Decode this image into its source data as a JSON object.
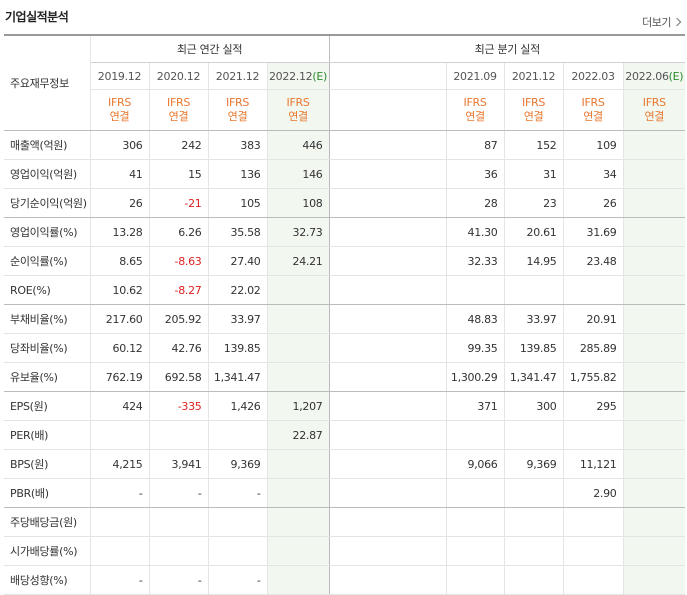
{
  "header": {
    "title": "기업실적분석",
    "more": "더보기"
  },
  "table": {
    "row_header": "주요재무정보",
    "annual_group": "최근 연간 실적",
    "quarter_group": "최근 분기 실적",
    "annual_periods": [
      "2019.12",
      "2020.12",
      "2021.12",
      "2022.12"
    ],
    "annual_est_suffix": "(E)",
    "quarter_periods": [
      "",
      "2021.09",
      "2021.12",
      "2022.03",
      "2022.06"
    ],
    "quarter_est_suffix": "(E)",
    "ifrs_top": "IFRS",
    "ifrs_bottom": "연결",
    "rows": [
      {
        "label": "매출액(억원)",
        "a": [
          "306",
          "242",
          "383",
          "446"
        ],
        "q": [
          "",
          "87",
          "152",
          "109",
          ""
        ]
      },
      {
        "label": "영업이익(억원)",
        "a": [
          "41",
          "15",
          "136",
          "146"
        ],
        "q": [
          "",
          "36",
          "31",
          "34",
          ""
        ]
      },
      {
        "label": "당기순이익(억원)",
        "a": [
          "26",
          "-21",
          "105",
          "108"
        ],
        "q": [
          "",
          "28",
          "23",
          "26",
          ""
        ]
      },
      {
        "label": "영업이익률(%)",
        "a": [
          "13.28",
          "6.26",
          "35.58",
          "32.73"
        ],
        "q": [
          "",
          "41.30",
          "20.61",
          "31.69",
          ""
        ]
      },
      {
        "label": "순이익률(%)",
        "a": [
          "8.65",
          "-8.63",
          "27.40",
          "24.21"
        ],
        "q": [
          "",
          "32.33",
          "14.95",
          "23.48",
          ""
        ]
      },
      {
        "label": "ROE(%)",
        "a": [
          "10.62",
          "-8.27",
          "22.02",
          ""
        ],
        "q": [
          "",
          "",
          "",
          "",
          ""
        ]
      },
      {
        "label": "부채비율(%)",
        "a": [
          "217.60",
          "205.92",
          "33.97",
          ""
        ],
        "q": [
          "",
          "48.83",
          "33.97",
          "20.91",
          ""
        ]
      },
      {
        "label": "당좌비율(%)",
        "a": [
          "60.12",
          "42.76",
          "139.85",
          ""
        ],
        "q": [
          "",
          "99.35",
          "139.85",
          "285.89",
          ""
        ]
      },
      {
        "label": "유보율(%)",
        "a": [
          "762.19",
          "692.58",
          "1,341.47",
          ""
        ],
        "q": [
          "",
          "1,300.29",
          "1,341.47",
          "1,755.82",
          ""
        ]
      },
      {
        "label": "EPS(원)",
        "a": [
          "424",
          "-335",
          "1,426",
          "1,207"
        ],
        "q": [
          "",
          "371",
          "300",
          "295",
          ""
        ]
      },
      {
        "label": "PER(배)",
        "a": [
          "",
          "",
          "",
          "22.87"
        ],
        "q": [
          "",
          "",
          "",
          "",
          ""
        ]
      },
      {
        "label": "BPS(원)",
        "a": [
          "4,215",
          "3,941",
          "9,369",
          ""
        ],
        "q": [
          "",
          "9,066",
          "9,369",
          "11,121",
          ""
        ]
      },
      {
        "label": "PBR(배)",
        "a": [
          "-",
          "-",
          "-",
          ""
        ],
        "q": [
          "",
          "",
          "",
          "2.90",
          ""
        ]
      },
      {
        "label": "주당배당금(원)",
        "a": [
          "",
          "",
          "",
          ""
        ],
        "q": [
          "",
          "",
          "",
          "",
          ""
        ]
      },
      {
        "label": "시가배당률(%)",
        "a": [
          "",
          "",
          "",
          ""
        ],
        "q": [
          "",
          "",
          "",
          "",
          ""
        ]
      },
      {
        "label": "배당성향(%)",
        "a": [
          "-",
          "-",
          "-",
          ""
        ],
        "q": [
          "",
          "",
          "",
          "",
          ""
        ]
      }
    ]
  }
}
